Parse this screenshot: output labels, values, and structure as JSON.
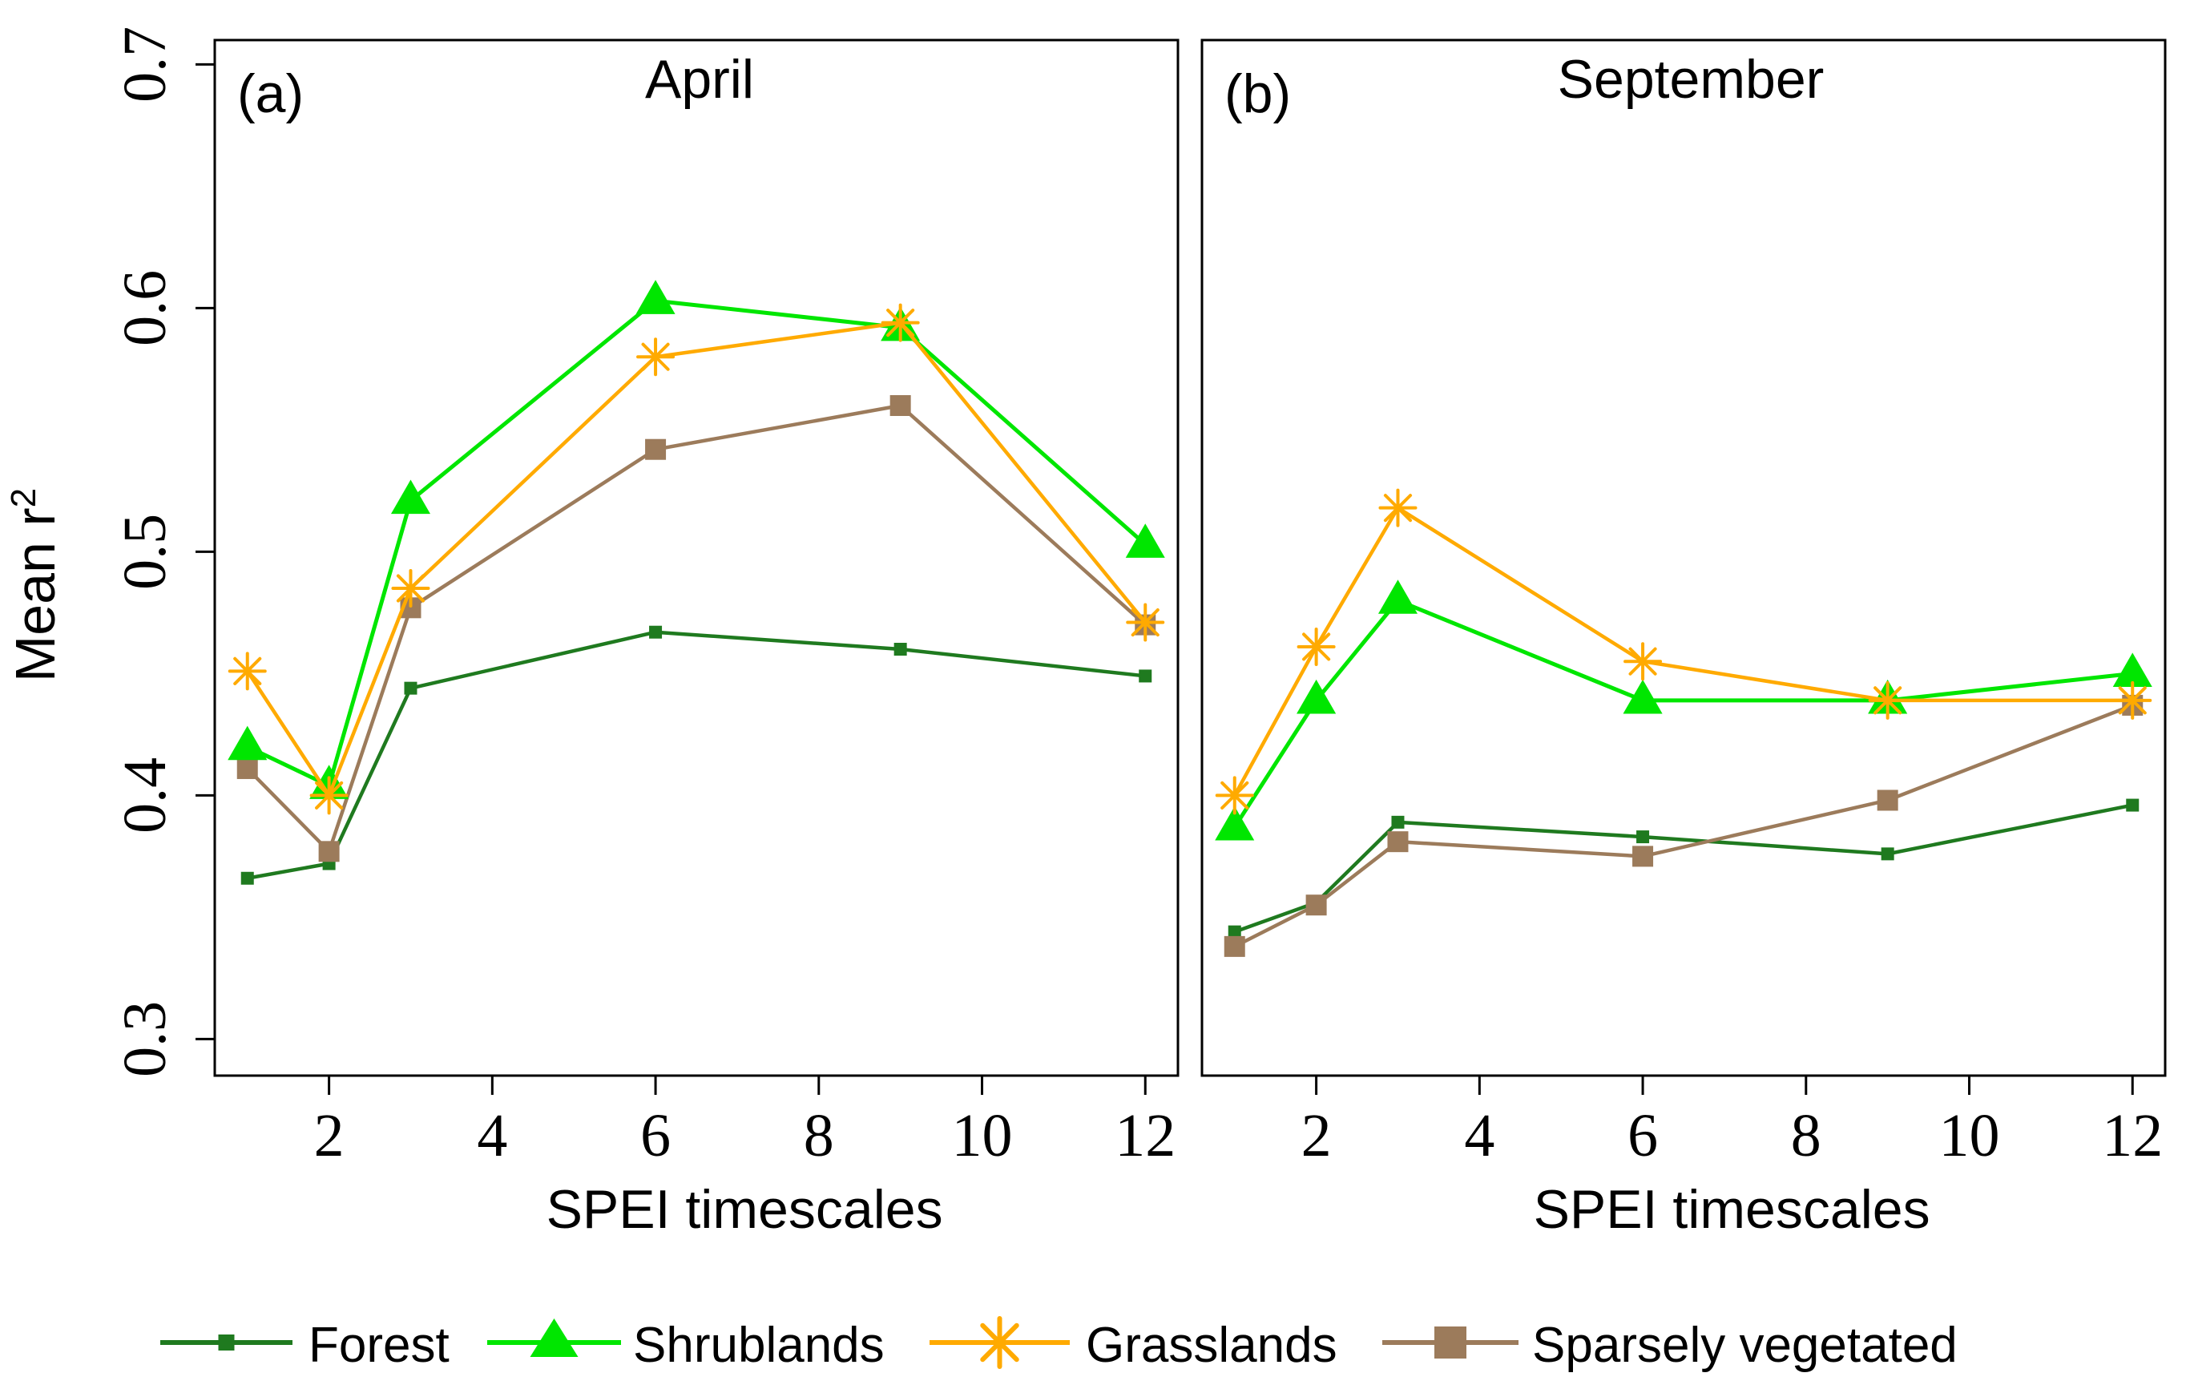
{
  "y_axis_label": "Mean r",
  "y_axis_label_sup": "2",
  "colors": {
    "forest": "#1f7a1f",
    "shrublands": "#00e600",
    "grasslands": "#ffaa00",
    "sparsely_vegetated": "#9c7b5b",
    "axis": "#000000"
  },
  "legend": [
    {
      "key": "forest",
      "label": "Forest",
      "marker": "square-small"
    },
    {
      "key": "shrublands",
      "label": "Shrublands",
      "marker": "triangle"
    },
    {
      "key": "grasslands",
      "label": "Grasslands",
      "marker": "asterisk"
    },
    {
      "key": "sparsely_vegetated",
      "label": "Sparsely vegetated",
      "marker": "square"
    }
  ],
  "chart_data": [
    {
      "type": "line",
      "panel_label": "(a)",
      "title": "April",
      "xlabel": "SPEI timescales",
      "ylabel": "Mean r2",
      "xlim": [
        0.6,
        12.4
      ],
      "ylim": [
        0.285,
        0.71
      ],
      "x_ticks": [
        2,
        4,
        6,
        8,
        10,
        12
      ],
      "y_ticks": [
        0.3,
        0.4,
        0.5,
        0.6,
        0.7
      ],
      "x_tick_labels": [
        "2",
        "4",
        "6",
        "8",
        "10",
        "12"
      ],
      "y_tick_labels": [
        "0.3",
        "0.4",
        "0.5",
        "0.6",
        "0.7"
      ],
      "x": [
        1,
        2,
        3,
        6,
        9,
        12
      ],
      "series": [
        {
          "key": "forest",
          "name": "Forest",
          "values": [
            0.366,
            0.372,
            0.444,
            0.467,
            0.46,
            0.449
          ]
        },
        {
          "key": "shrublands",
          "name": "Shrublands",
          "values": [
            0.42,
            0.404,
            0.521,
            0.603,
            0.592,
            0.503
          ]
        },
        {
          "key": "grasslands",
          "name": "Grasslands",
          "values": [
            0.451,
            0.4,
            0.485,
            0.58,
            0.594,
            0.471
          ]
        },
        {
          "key": "sparsely_vegetated",
          "name": "Sparsely vegetated",
          "values": [
            0.411,
            0.377,
            0.477,
            0.542,
            0.56,
            0.47
          ]
        }
      ]
    },
    {
      "type": "line",
      "panel_label": "(b)",
      "title": "September",
      "xlabel": "SPEI timescales",
      "ylabel": "",
      "xlim": [
        0.6,
        12.4
      ],
      "ylim": [
        0.285,
        0.71
      ],
      "x_ticks": [
        2,
        4,
        6,
        8,
        10,
        12
      ],
      "y_ticks": [],
      "x_tick_labels": [
        "2",
        "4",
        "6",
        "8",
        "10",
        "12"
      ],
      "y_tick_labels": [],
      "x": [
        1,
        2,
        3,
        6,
        9,
        12
      ],
      "series": [
        {
          "key": "forest",
          "name": "Forest",
          "values": [
            0.344,
            0.356,
            0.389,
            0.383,
            0.376,
            0.396
          ]
        },
        {
          "key": "shrublands",
          "name": "Shrublands",
          "values": [
            0.387,
            0.439,
            0.48,
            0.439,
            0.439,
            0.45
          ]
        },
        {
          "key": "grasslands",
          "name": "Grasslands",
          "values": [
            0.4,
            0.461,
            0.518,
            0.455,
            0.439,
            0.439
          ]
        },
        {
          "key": "sparsely_vegetated",
          "name": "Sparsely vegetated",
          "values": [
            0.338,
            0.355,
            0.381,
            0.375,
            0.398,
            0.437
          ]
        }
      ]
    }
  ]
}
